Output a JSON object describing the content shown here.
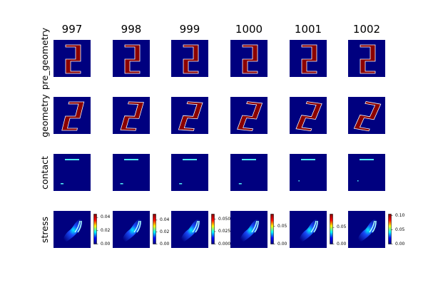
{
  "chart_data": {
    "type": "heatmap",
    "title": "",
    "columns": [
      "997",
      "998",
      "999",
      "1000",
      "1001",
      "1002"
    ],
    "rows": [
      "pre_geometry",
      "geometry",
      "contact",
      "stress"
    ],
    "colormap": "jet",
    "colormap_stops": [
      "#00007f",
      "#0000ff",
      "#00ffff",
      "#ffff00",
      "#ff0000",
      "#7f0000"
    ],
    "background_color": "#00007f",
    "shape_color": "#8b0000",
    "outline_color": "#ffffff",
    "contact_line_color": "#4ee9f1",
    "geometry_rotation_deg": [
      0,
      2,
      4,
      6,
      8,
      10
    ],
    "stress_colorbars": [
      {
        "column": "997",
        "min": 0.0,
        "max": 0.045,
        "ticks": [
          0.0,
          0.02,
          0.04
        ],
        "tick_labels": [
          "0.00",
          "0.02",
          "0.04"
        ]
      },
      {
        "column": "998",
        "min": 0.0,
        "max": 0.05,
        "ticks": [
          0.0,
          0.02,
          0.04
        ],
        "tick_labels": [
          "0.00",
          "0.02",
          "0.04"
        ]
      },
      {
        "column": "999",
        "min": 0.0,
        "max": 0.06,
        "ticks": [
          0.0,
          0.025,
          0.05
        ],
        "tick_labels": [
          "0.000",
          "0.025",
          "0.050"
        ]
      },
      {
        "column": "1000",
        "min": 0.0,
        "max": 0.085,
        "ticks": [
          0.0,
          0.05
        ],
        "tick_labels": [
          "0.00",
          "0.05"
        ]
      },
      {
        "column": "1001",
        "min": 0.0,
        "max": 0.09,
        "ticks": [
          0.0,
          0.05
        ],
        "tick_labels": [
          "0.00",
          "0.05"
        ]
      },
      {
        "column": "1002",
        "min": 0.0,
        "max": 0.105,
        "ticks": [
          0.0,
          0.05,
          0.1
        ],
        "tick_labels": [
          "0.00",
          "0.05",
          "0.10"
        ]
      }
    ]
  }
}
